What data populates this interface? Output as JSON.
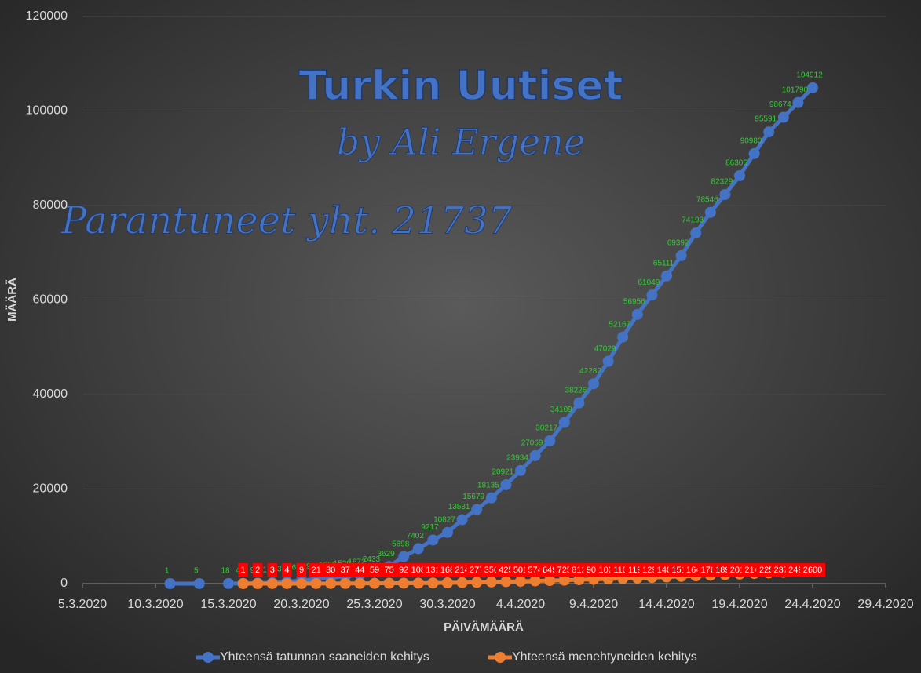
{
  "chart_data": {
    "type": "line",
    "annotations": [
      "Turkin Uutiset",
      "by Ali Ergene",
      "Parantuneet yht. 21737"
    ],
    "xlabel": "PÄIVÄMÄÄRÄ",
    "ylabel": "MÄÄRÄ",
    "xlim": [
      "5.3.2020",
      "29.4.2020"
    ],
    "xticks": [
      "5.3.2020",
      "10.3.2020",
      "15.3.2020",
      "20.3.2020",
      "25.3.2020",
      "30.3.2020",
      "4.4.2020",
      "9.4.2020",
      "14.4.2020",
      "19.4.2020",
      "24.4.2020",
      "29.4.2020"
    ],
    "ylim": [
      0,
      120000
    ],
    "yticks": [
      0,
      20000,
      40000,
      60000,
      80000,
      100000,
      120000
    ],
    "grid": true,
    "series": [
      {
        "name": "Yhteensä tatunnan saaneiden kehitys",
        "color": "#4472c4",
        "label_color": "#33cc33",
        "x": [
          "11.3.2020",
          "13.3.2020",
          "14.3.2020",
          "15.3.2020",
          "16.3.2020",
          "17.3.2020",
          "18.3.2020",
          "19.3.2020",
          "20.3.2020",
          "21.3.2020",
          "22.3.2020",
          "23.3.2020",
          "24.3.2020",
          "25.3.2020",
          "26.3.2020",
          "27.3.2020",
          "28.3.2020",
          "29.3.2020",
          "30.3.2020",
          "31.3.2020",
          "1.4.2020",
          "2.4.2020",
          "3.4.2020",
          "4.4.2020",
          "5.4.2020",
          "6.4.2020",
          "7.4.2020",
          "8.4.2020",
          "9.4.2020",
          "10.4.2020",
          "11.4.2020",
          "12.4.2020",
          "13.4.2020",
          "14.4.2020",
          "15.4.2020",
          "16.4.2020",
          "17.4.2020",
          "18.4.2020",
          "19.4.2020",
          "20.4.2020",
          "21.4.2020",
          "22.4.2020",
          "23.4.2020",
          "24.4.2020"
        ],
        "values": [
          1,
          5,
          null,
          18,
          47,
          98,
          191,
          359,
          670,
          947,
          1236,
          1529,
          1872,
          2433,
          3629,
          5698,
          7402,
          9217,
          10827,
          13531,
          15679,
          18135,
          20921,
          23934,
          27069,
          30217,
          34109,
          38226,
          42282,
          47029,
          52167,
          56956,
          61049,
          65111,
          69392,
          74193,
          78546,
          82329,
          86306,
          90980,
          95591,
          98674,
          101790,
          104912
        ]
      },
      {
        "name": "Yhteensä menehtyneiden kehitys",
        "color": "#ed7d31",
        "label_color": "#ff0000",
        "x": [
          "16.3.2020",
          "17.3.2020",
          "18.3.2020",
          "19.3.2020",
          "20.3.2020",
          "21.3.2020",
          "22.3.2020",
          "23.3.2020",
          "24.3.2020",
          "25.3.2020",
          "26.3.2020",
          "27.3.2020",
          "28.3.2020",
          "29.3.2020",
          "30.3.2020",
          "31.3.2020",
          "1.4.2020",
          "2.4.2020",
          "3.4.2020",
          "4.4.2020",
          "5.4.2020",
          "6.4.2020",
          "7.4.2020",
          "8.4.2020",
          "9.4.2020",
          "10.4.2020",
          "11.4.2020",
          "12.4.2020",
          "13.4.2020",
          "14.4.2020",
          "15.4.2020",
          "16.4.2020",
          "17.4.2020",
          "18.4.2020",
          "19.4.2020",
          "20.4.2020",
          "21.4.2020",
          "22.4.2020",
          "23.4.2020",
          "24.4.2020"
        ],
        "values": [
          1,
          2,
          3,
          4,
          9,
          21,
          30,
          37,
          44,
          59,
          75,
          92,
          108,
          131,
          168,
          214,
          277,
          356,
          425,
          501,
          574,
          649,
          725,
          812,
          908,
          1006,
          1101,
          1198,
          1296,
          1403,
          1518,
          1643,
          1769,
          1890,
          2017,
          2140,
          2259,
          2376,
          2491,
          2600
        ]
      }
    ]
  }
}
